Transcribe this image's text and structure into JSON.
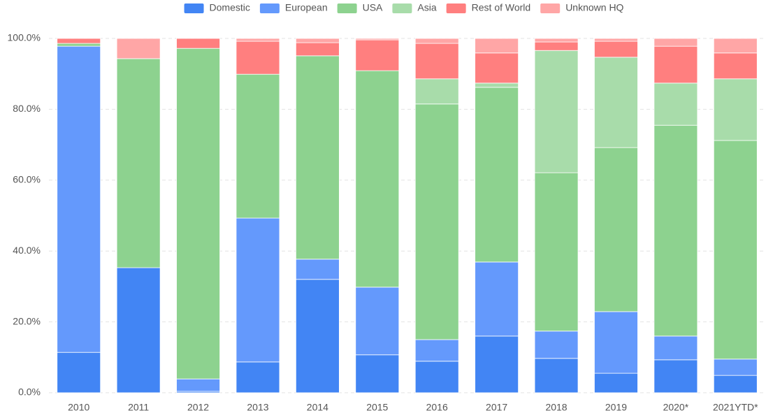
{
  "chart_data": {
    "type": "bar",
    "stacked": true,
    "categories": [
      "2010",
      "2011",
      "2012",
      "2013",
      "2014",
      "2015",
      "2016",
      "2017",
      "2018",
      "2019",
      "2020*",
      "2021YTD*"
    ],
    "series": [
      {
        "name": "Domestic",
        "color": "#4285f4",
        "values": [
          11.4,
          35.3,
          0.4,
          8.7,
          32.0,
          10.7,
          8.9,
          16.0,
          9.7,
          5.5,
          9.3,
          4.9
        ]
      },
      {
        "name": "European",
        "color": "#6499fc",
        "values": [
          86.4,
          0,
          3.5,
          40.6,
          5.7,
          19.1,
          6.1,
          20.9,
          7.7,
          17.4,
          6.7,
          4.6
        ]
      },
      {
        "name": "USA",
        "color": "#8dd28f",
        "values": [
          0.8,
          59.0,
          93.3,
          40.6,
          57.4,
          61.1,
          66.5,
          49.3,
          44.7,
          46.3,
          59.5,
          61.7
        ]
      },
      {
        "name": "Asia",
        "color": "#a8dcaa",
        "values": [
          0,
          0,
          0,
          0,
          0,
          0,
          7.1,
          1.2,
          34.5,
          25.5,
          11.9,
          17.4
        ]
      },
      {
        "name": "Rest of World",
        "color": "#ff7f7f",
        "values": [
          1.4,
          0,
          2.8,
          9.3,
          3.7,
          8.7,
          10.0,
          8.5,
          2.4,
          4.5,
          10.4,
          7.3
        ]
      },
      {
        "name": "Unknown HQ",
        "color": "#ffa6a6",
        "values": [
          0,
          5.7,
          0,
          0.8,
          1.2,
          0.4,
          1.4,
          4.1,
          1.0,
          0.8,
          2.2,
          4.1
        ]
      }
    ],
    "ylim": [
      0,
      100
    ],
    "yticks": [
      {
        "value": 0,
        "label": "0.0%"
      },
      {
        "value": 20,
        "label": "20.0%"
      },
      {
        "value": 40,
        "label": "40.0%"
      },
      {
        "value": 60,
        "label": "60.0%"
      },
      {
        "value": 80,
        "label": "80.0%"
      },
      {
        "value": 100,
        "label": "100.0%"
      }
    ],
    "grid": true,
    "legend": "top"
  }
}
